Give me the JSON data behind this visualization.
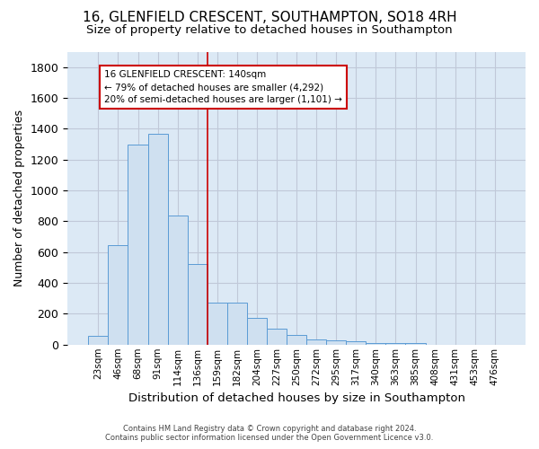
{
  "title": "16, GLENFIELD CRESCENT, SOUTHAMPTON, SO18 4RH",
  "subtitle": "Size of property relative to detached houses in Southampton",
  "xlabel": "Distribution of detached houses by size in Southampton",
  "ylabel": "Number of detached properties",
  "footer_line1": "Contains HM Land Registry data © Crown copyright and database right 2024.",
  "footer_line2": "Contains public sector information licensed under the Open Government Licence v3.0.",
  "bar_labels": [
    "23sqm",
    "46sqm",
    "68sqm",
    "91sqm",
    "114sqm",
    "136sqm",
    "159sqm",
    "182sqm",
    "204sqm",
    "227sqm",
    "250sqm",
    "272sqm",
    "295sqm",
    "317sqm",
    "340sqm",
    "363sqm",
    "385sqm",
    "408sqm",
    "431sqm",
    "453sqm",
    "476sqm"
  ],
  "bar_values": [
    55,
    645,
    1300,
    1370,
    840,
    525,
    275,
    275,
    175,
    105,
    60,
    35,
    30,
    20,
    10,
    10,
    10,
    0,
    0,
    0,
    0
  ],
  "bar_color": "#cfe0f0",
  "bar_edge_color": "#5b9bd5",
  "vline_x": 5.5,
  "vline_color": "#cc0000",
  "annotation_text": "16 GLENFIELD CRESCENT: 140sqm\n← 79% of detached houses are smaller (4,292)\n20% of semi-detached houses are larger (1,101) →",
  "annotation_box_color": "#cc0000",
  "ylim": [
    0,
    1900
  ],
  "fig_background": "#ffffff",
  "plot_background": "#dce9f5",
  "grid_color": "#c0c8d8",
  "title_fontsize": 11,
  "subtitle_fontsize": 9.5,
  "ylabel_fontsize": 9,
  "xlabel_fontsize": 9.5
}
